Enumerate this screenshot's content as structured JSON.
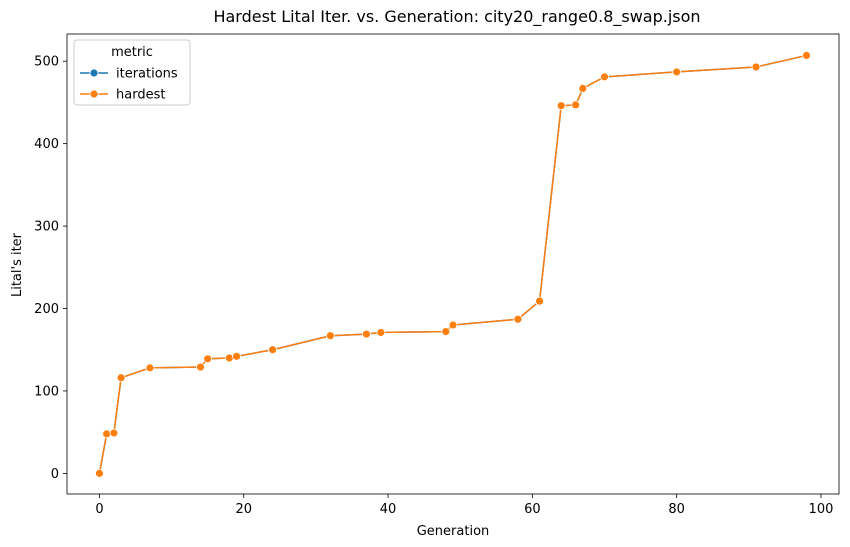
{
  "chart_data": {
    "type": "line",
    "title": "Hardest Lital Iter. vs. Generation: city20_range0.8_swap.json",
    "xlabel": "Generation",
    "ylabel": "Lital's iter",
    "xlim": [
      -4.5,
      102.5
    ],
    "ylim": [
      -25,
      533
    ],
    "xticks": [
      0,
      20,
      40,
      60,
      80,
      100
    ],
    "yticks": [
      0,
      100,
      200,
      300,
      400,
      500
    ],
    "grid": false,
    "legend": {
      "title": "metric",
      "placement": "top-left"
    },
    "series": [
      {
        "name": "iterations",
        "color": "#1f77b4",
        "marker": "circle",
        "x": [
          0,
          1,
          2,
          3,
          7,
          14,
          15,
          18,
          19,
          24,
          32,
          37,
          39,
          48,
          49,
          58,
          61,
          64,
          66,
          67,
          70,
          80,
          91,
          98
        ],
        "y": [
          0,
          48,
          49,
          116,
          128,
          129,
          139,
          140,
          142,
          150,
          167,
          169,
          171,
          172,
          180,
          187,
          209,
          446,
          447,
          467,
          481,
          487,
          493,
          507
        ]
      },
      {
        "name": "hardest",
        "color": "#ff7f0e",
        "marker": "circle",
        "x": [
          0,
          1,
          2,
          3,
          7,
          14,
          15,
          18,
          19,
          24,
          32,
          37,
          39,
          48,
          49,
          58,
          61,
          64,
          66,
          67,
          70,
          80,
          91,
          98
        ],
        "y": [
          0,
          48,
          49,
          116,
          128,
          129,
          139,
          140,
          142,
          150,
          167,
          169,
          171,
          172,
          180,
          187,
          209,
          446,
          447,
          467,
          481,
          487,
          493,
          507
        ]
      }
    ]
  }
}
